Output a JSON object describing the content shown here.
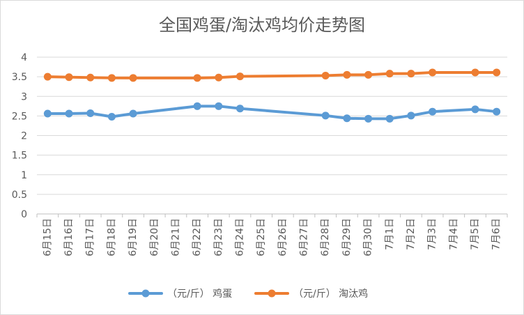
{
  "chart_data": {
    "type": "line",
    "title": "全国鸡蛋/淘汰鸡均价走势图",
    "categories": [
      "6月15日",
      "6月16日",
      "6月17日",
      "6月18日",
      "6月19日",
      "6月20日",
      "6月21日",
      "6月22日",
      "6月23日",
      "6月24日",
      "6月25日",
      "6月26日",
      "6月27日",
      "6月28日",
      "6月29日",
      "6月30日",
      "7月1日",
      "7月2日",
      "7月3日",
      "7月4日",
      "7月5日",
      "7月6日"
    ],
    "y_ticks": [
      "0",
      "0.5",
      "1",
      "1.5",
      "2",
      "2.5",
      "3",
      "3.5",
      "4"
    ],
    "ylim": [
      0,
      4
    ],
    "grid": "horizontal",
    "legend_position": "bottom",
    "series": [
      {
        "name": "（元/斤） 鸡蛋",
        "color": "#5b9bd5",
        "values": [
          2.56,
          2.56,
          2.57,
          2.48,
          2.56,
          null,
          null,
          2.75,
          2.75,
          2.69,
          null,
          null,
          null,
          2.51,
          2.44,
          2.43,
          2.43,
          2.51,
          2.61,
          null,
          2.67,
          2.61
        ]
      },
      {
        "name": "（元/斤） 淘汰鸡",
        "color": "#ed7d31",
        "values": [
          3.5,
          3.49,
          3.48,
          3.47,
          3.47,
          null,
          null,
          3.47,
          3.48,
          3.51,
          null,
          null,
          null,
          3.53,
          3.55,
          3.55,
          3.58,
          3.58,
          3.61,
          null,
          3.61,
          3.61
        ]
      }
    ]
  }
}
